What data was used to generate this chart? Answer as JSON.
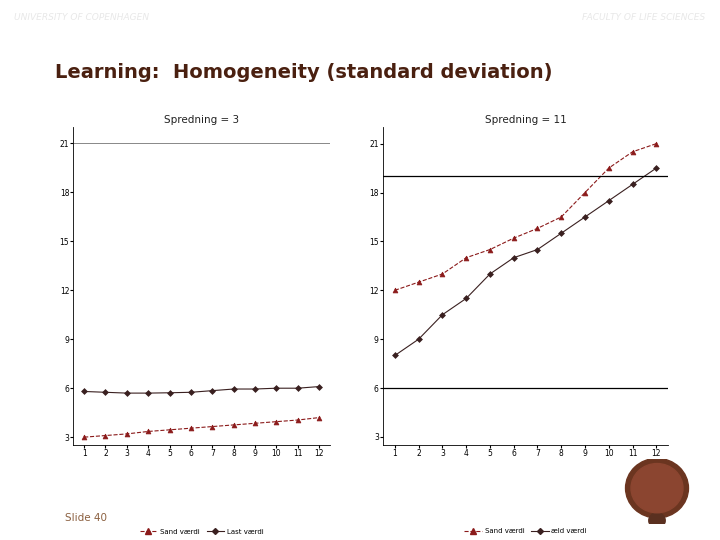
{
  "title": "Learning:  Homogeneity (standard deviation)",
  "slide_num": "Slide 40",
  "bg_color": "#ffffff",
  "header_color": "#707070",
  "header_text_left": "UNIVERSITY OF COPENHAGEN",
  "header_text_right": "FACULTY OF LIFE SCIENCES",
  "border_color": "#dd0000",
  "chart1": {
    "title": "Spredning = 3",
    "x": [
      1,
      2,
      3,
      4,
      5,
      6,
      7,
      8,
      9,
      10,
      11,
      12
    ],
    "sand_vaerdi": [
      3.0,
      3.1,
      3.2,
      3.35,
      3.45,
      3.55,
      3.65,
      3.75,
      3.85,
      3.95,
      4.05,
      4.2
    ],
    "last_vaerdi": [
      5.8,
      5.75,
      5.7,
      5.7,
      5.72,
      5.75,
      5.85,
      5.95,
      5.95,
      6.0,
      6.0,
      6.1
    ],
    "yticks": [
      3,
      6,
      9,
      12,
      15,
      18,
      21
    ],
    "ylim": [
      2.5,
      22
    ],
    "hline": 21,
    "legend1": "Sand værdi",
    "legend2": "Last værdi",
    "line1_color": "#8b1a1a",
    "line2_color": "#3a2020"
  },
  "chart2": {
    "title": "Spredning = 11",
    "x": [
      1,
      2,
      3,
      4,
      5,
      6,
      7,
      8,
      9,
      10,
      11,
      12
    ],
    "sand_vaerdi": [
      12.0,
      12.5,
      13.0,
      14.0,
      14.5,
      15.2,
      15.8,
      16.5,
      18.0,
      19.5,
      20.5,
      21.0
    ],
    "last_vaerdi": [
      8.0,
      9.0,
      10.5,
      11.5,
      13.0,
      14.0,
      14.5,
      15.5,
      16.5,
      17.5,
      18.5,
      19.5
    ],
    "yticks": [
      3,
      6,
      9,
      12,
      15,
      18,
      21
    ],
    "ylim": [
      2.5,
      22
    ],
    "hlines": [
      6,
      19
    ],
    "legend1": "Sand værdi",
    "legend2": "æld værdi",
    "line1_color": "#8b1a1a",
    "line2_color": "#3a2020"
  },
  "title_color": "#4a2010",
  "slide_color": "#8b6040"
}
